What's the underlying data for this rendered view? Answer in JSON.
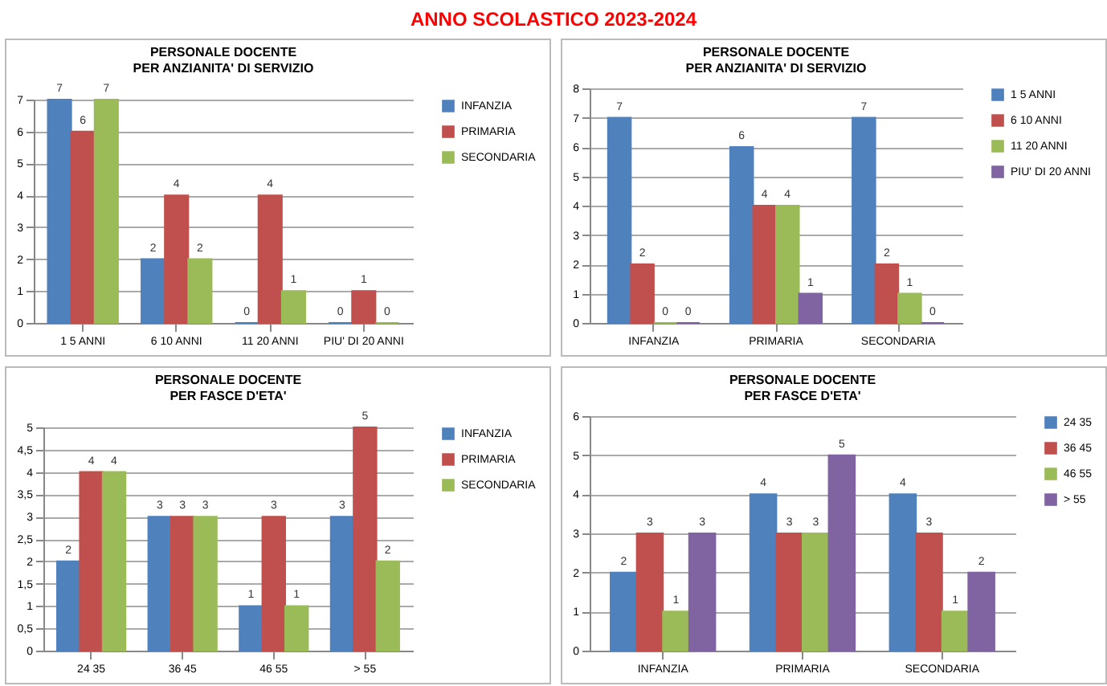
{
  "chart_data": [
    {
      "type": "bar",
      "title": "PERSONALE DOCENTE",
      "subtitle": "PER ANZIANITA' DI SERVIZIO",
      "annotations": [
        "ANNO SCOLASTICO 2023-2024"
      ],
      "categories": [
        "1 5 ANNI",
        "6 10 ANNI",
        "11 20 ANNI",
        "PIU' DI 20 ANNI"
      ],
      "series": [
        {
          "name": "INFANZIA",
          "color": "#4f81bd",
          "values": [
            7,
            2,
            0,
            0
          ]
        },
        {
          "name": "PRIMARIA",
          "color": "#c0504d",
          "values": [
            6,
            4,
            4,
            1
          ]
        },
        {
          "name": "SECONDARIA",
          "color": "#9bbb59",
          "values": [
            7,
            2,
            1,
            0
          ]
        }
      ],
      "ylim": [
        0,
        7
      ],
      "yticks": [
        0,
        1,
        2,
        3,
        4,
        5,
        6,
        7
      ],
      "grid": "y",
      "legend": "right",
      "data_labels": true
    },
    {
      "type": "bar",
      "title": "PERSONALE DOCENTE",
      "subtitle": "PER ANZIANITA' DI SERVIZIO",
      "categories": [
        "INFANZIA",
        "PRIMARIA",
        "SECONDARIA"
      ],
      "series": [
        {
          "name": "1 5 ANNI",
          "color": "#4f81bd",
          "values": [
            7,
            6,
            7
          ]
        },
        {
          "name": "6 10 ANNI",
          "color": "#c0504d",
          "values": [
            2,
            4,
            2
          ]
        },
        {
          "name": "11 20 ANNI",
          "color": "#9bbb59",
          "values": [
            0,
            4,
            1
          ]
        },
        {
          "name": "PIU' DI 20 ANNI",
          "color": "#8064a2",
          "values": [
            0,
            1,
            0
          ]
        }
      ],
      "ylim": [
        0,
        8
      ],
      "yticks": [
        0,
        1,
        2,
        3,
        4,
        5,
        6,
        7,
        8
      ],
      "grid": "y",
      "legend": "right",
      "data_labels": true
    },
    {
      "type": "bar",
      "title": "PERSONALE DOCENTE",
      "subtitle": "PER FASCE D'ETA'",
      "categories": [
        "24 35",
        "36 45",
        "46 55",
        "> 55"
      ],
      "series": [
        {
          "name": "INFANZIA",
          "color": "#4f81bd",
          "values": [
            2,
            3,
            1,
            3
          ]
        },
        {
          "name": "PRIMARIA",
          "color": "#c0504d",
          "values": [
            4,
            3,
            3,
            5
          ]
        },
        {
          "name": "SECONDARIA",
          "color": "#9bbb59",
          "values": [
            4,
            3,
            1,
            2
          ]
        }
      ],
      "ylim": [
        0,
        5
      ],
      "yticks": [
        0,
        {
          "value": 0.5,
          "label": "0,5"
        },
        1,
        {
          "value": 1.5,
          "label": "1,5"
        },
        2,
        {
          "value": 2.5,
          "label": "2,5"
        },
        3,
        {
          "value": 3.5,
          "label": "3,5"
        },
        4,
        {
          "value": 4.5,
          "label": "4,5"
        },
        5
      ],
      "grid": "y",
      "legend": "right",
      "data_labels": true
    },
    {
      "type": "bar",
      "title": "PERSONALE DOCENTE",
      "subtitle": "PER FASCE D'ETA'",
      "categories": [
        "INFANZIA",
        "PRIMARIA",
        "SECONDARIA"
      ],
      "series": [
        {
          "name": "24 35",
          "color": "#4f81bd",
          "values": [
            2,
            4,
            4
          ]
        },
        {
          "name": "36 45",
          "color": "#c0504d",
          "values": [
            3,
            3,
            3
          ]
        },
        {
          "name": "46 55",
          "color": "#9bbb59",
          "values": [
            1,
            3,
            1
          ]
        },
        {
          "name": "> 55",
          "color": "#8064a2",
          "values": [
            3,
            5,
            2
          ]
        }
      ],
      "ylim": [
        0,
        6
      ],
      "yticks": [
        0,
        1,
        2,
        3,
        4,
        5,
        6
      ],
      "grid": "y",
      "legend": "right",
      "data_labels": true
    }
  ]
}
